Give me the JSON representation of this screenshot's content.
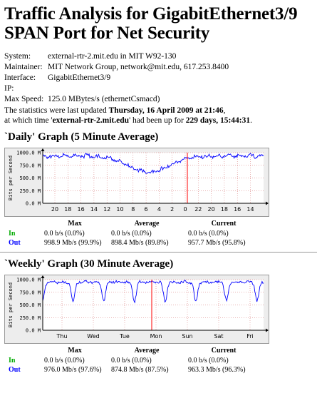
{
  "title_line1": "Traffic Analysis for GigabitEthernet3/9",
  "title_line2": "SPAN Port for Net Security",
  "info": [
    {
      "key": "System:",
      "value": "external-rtr-2.mit.edu in MIT W92-130"
    },
    {
      "key": "Maintainer:",
      "value": "MIT Network Group, network@mit.edu, 617.253.8400"
    },
    {
      "key": "Interface:",
      "value": "GigabitEthernet3/9"
    },
    {
      "key": "IP:",
      "value": ""
    },
    {
      "key": "Max Speed:",
      "value": "125.0 MBytes/s (ethernetCsmacd)"
    }
  ],
  "stats": {
    "prefix": "The statistics were last updated ",
    "updated": "Thursday, 16 April 2009 at 21:46",
    "mid": ",",
    "line2_prefix": "at which time '",
    "router": "external-rtr-2.mit.edu",
    "line2_mid": "' had been up for ",
    "uptime": "229 days, 15:44:31",
    "line2_suffix": "."
  },
  "graphs": [
    {
      "heading": "`Daily' Graph (5 Minute Average)",
      "ylabel": "Bits per Second",
      "yticks": [
        "1000.0 M",
        "750.0 M",
        "500.0 M",
        "250.0 M",
        "0.0 M"
      ],
      "xticks": [
        "20",
        "18",
        "16",
        "14",
        "12",
        "10",
        "8",
        "6",
        "4",
        "2",
        "0",
        "22",
        "20",
        "18",
        "16",
        "14"
      ],
      "legend_headers": [
        "Max",
        "Average",
        "Current"
      ],
      "rows": [
        {
          "label": "In",
          "max": "0.0 b/s (0.0%)",
          "avg": "0.0 b/s (0.0%)",
          "cur": "0.0 b/s (0.0%)"
        },
        {
          "label": "Out",
          "max": "998.9 Mb/s (99.9%)",
          "avg": "898.4 Mb/s (89.8%)",
          "cur": "957.7 Mb/s (95.8%)"
        }
      ]
    },
    {
      "heading": "`Weekly' Graph (30 Minute Average)",
      "ylabel": "Bits per Second",
      "yticks": [
        "1000.0 M",
        "750.0 M",
        "500.0 M",
        "250.0 M",
        "0.0 M"
      ],
      "xticks": [
        "Thu",
        "Wed",
        "Tue",
        "Mon",
        "Sun",
        "Sat",
        "Fri",
        "Thu"
      ],
      "legend_headers": [
        "Max",
        "Average",
        "Current"
      ],
      "rows": [
        {
          "label": "In",
          "max": "0.0 b/s (0.0%)",
          "avg": "0.0 b/s (0.0%)",
          "cur": "0.0 b/s (0.0%)"
        },
        {
          "label": "Out",
          "max": "976.0 Mb/s (97.6%)",
          "avg": "874.8 Mb/s (87.5%)",
          "cur": "963.3 Mb/s (96.3%)"
        }
      ]
    }
  ],
  "colors": {
    "in": "#00aa00",
    "out": "#0000ff",
    "now_marker": "#ff0000",
    "grid": "#b0b0b0",
    "bg": "#ededed"
  }
}
